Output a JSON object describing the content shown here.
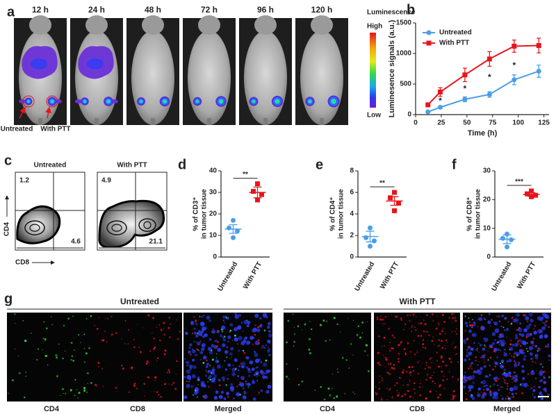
{
  "panel_labels": [
    "a",
    "b",
    "c",
    "d",
    "e",
    "f",
    "g"
  ],
  "panel_a": {
    "timepoints": [
      "12 h",
      "24 h",
      "48 h",
      "72 h",
      "96 h",
      "120 h"
    ],
    "colorbar_title": "Luminescence",
    "colorbar_high": "High",
    "colorbar_low": "Low",
    "site_labels": [
      "Untreated",
      "With PTT"
    ]
  },
  "panel_c": {
    "axis_y": "CD4",
    "axis_x": "CD8",
    "plots": [
      {
        "title": "Untreated",
        "upper_left": 1.2,
        "lower_right": 4.6
      },
      {
        "title": "With PTT",
        "upper_left": 4.9,
        "lower_right": 21.1
      }
    ]
  },
  "panel_g": {
    "groups": [
      {
        "title": "Untreated",
        "channels": [
          "CD4",
          "CD8",
          "Merged"
        ]
      },
      {
        "title": "With PTT",
        "channels": [
          "CD4",
          "CD8",
          "Merged"
        ]
      }
    ]
  },
  "chart_data": [
    {
      "type": "line",
      "x_label": "Time (h)",
      "y_label": "Luminesence signals (a.u.)",
      "x": [
        12,
        24,
        48,
        72,
        96,
        120
      ],
      "series": [
        {
          "name": "Untreated",
          "color": "#4a9ee8",
          "marker": "circle",
          "values": [
            45,
            120,
            250,
            330,
            570,
            710
          ],
          "errors": [
            10,
            20,
            40,
            45,
            80,
            100
          ]
        },
        {
          "name": "With PTT",
          "color": "#e8141c",
          "marker": "square",
          "values": [
            160,
            370,
            650,
            910,
            1120,
            1130
          ],
          "errors": [
            30,
            70,
            110,
            120,
            100,
            120
          ]
        }
      ],
      "xlim": [
        0,
        130
      ],
      "xticks": [
        0,
        25,
        50,
        75,
        100,
        125
      ],
      "ylim": [
        0,
        1500
      ],
      "yticks": [
        0,
        500,
        1000,
        1500
      ],
      "legend": "upper left",
      "annotations": [
        {
          "text": "*",
          "x": 24,
          "y": 250
        },
        {
          "text": "*",
          "x": 48,
          "y": 450
        },
        {
          "text": "*",
          "x": 72,
          "y": 640
        },
        {
          "text": "*",
          "x": 96,
          "y": 830
        }
      ]
    },
    {
      "type": "dot",
      "y_label": [
        "% of CD3⁺",
        "in tumor tissue"
      ],
      "categories": [
        "Untreated",
        "With PTT"
      ],
      "groups": [
        {
          "color": "#4a9ee8",
          "marker": "circle",
          "values": [
            17,
            13.5,
            12,
            9
          ],
          "mean": 13,
          "sem": 2
        },
        {
          "color": "#e8141c",
          "marker": "square",
          "values": [
            34,
            30.5,
            29,
            26.5
          ],
          "mean": 30,
          "sem": 2.5
        }
      ],
      "ylim": [
        0,
        40
      ],
      "yticks": [
        0,
        10,
        20,
        30,
        40
      ],
      "significance": "**"
    },
    {
      "type": "dot",
      "y_label": [
        "% of CD4⁺",
        "in tumor tissue"
      ],
      "categories": [
        "Untreated",
        "With PTT"
      ],
      "groups": [
        {
          "color": "#4a9ee8",
          "marker": "circle",
          "values": [
            2.7,
            1.8,
            1.5,
            1.0
          ],
          "mean": 1.9,
          "sem": 0.5
        },
        {
          "color": "#e8141c",
          "marker": "square",
          "values": [
            6.0,
            5.5,
            5.0,
            4.3
          ],
          "mean": 5.2,
          "sem": 0.4
        }
      ],
      "ylim": [
        0,
        8
      ],
      "yticks": [
        0,
        2,
        4,
        6,
        8
      ],
      "significance": "**"
    },
    {
      "type": "dot",
      "y_label": [
        "% of CD8⁺",
        "in tumor tissue"
      ],
      "categories": [
        "Untreated",
        "With PTT"
      ],
      "groups": [
        {
          "color": "#4a9ee8",
          "marker": "circle",
          "values": [
            8,
            6.5,
            6,
            3.5
          ],
          "mean": 6.2,
          "sem": 1.5
        },
        {
          "color": "#e8141c",
          "marker": "square",
          "values": [
            23,
            22,
            21.5,
            21
          ],
          "mean": 21.8,
          "sem": 0.6
        }
      ],
      "ylim": [
        0,
        30
      ],
      "yticks": [
        0,
        10,
        20,
        30
      ],
      "significance": "***"
    }
  ]
}
